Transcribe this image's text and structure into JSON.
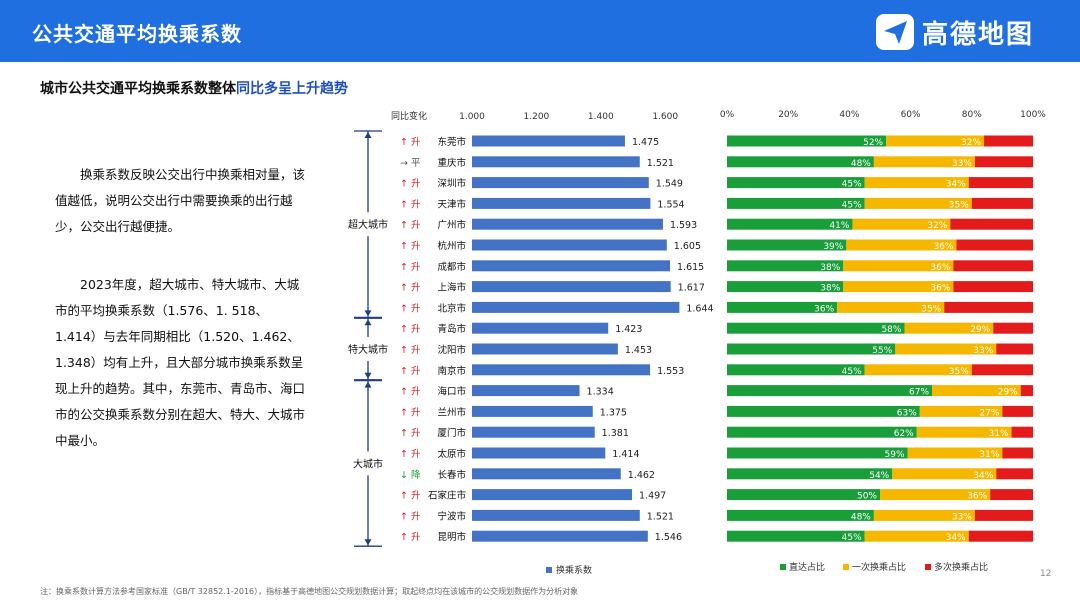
{
  "header": {
    "title": "公共交通平均换乘系数",
    "logo_text": "高德地图"
  },
  "subtitle": {
    "prefix": "城市公共交通平均换乘系数整体",
    "highlight": "同比多呈上升趋势"
  },
  "paragraphs": [
    "换乘系数反映公交出行中换乘相对量，该值越低，说明公交出行中需要换乘的出行越少，公交出行越便捷。",
    "2023年度，超大城市、特大城市、大城市的平均换乘系数（1.576、1. 518、1.414）与去年同期相比（1.520、1.462、1.348）均有上升，且大部分城市换乘系数呈现上升的趋势。其中，东莞市、青岛市、海口市的公交换乘系数分别在超大、特大、大城市中最小。"
  ],
  "change_header": "同比变化",
  "groups": [
    {
      "label": "超大城市",
      "start": 0,
      "end": 8
    },
    {
      "label": "特大城市",
      "start": 9,
      "end": 11
    },
    {
      "label": "大城市",
      "start": 12,
      "end": 19
    }
  ],
  "colors": {
    "bar": "#4472c4",
    "direct": "#1a9e3a",
    "one_transfer": "#f5b700",
    "multi_transfer": "#e31b1b",
    "up": "#d42020",
    "down": "#1a9e3a",
    "flat": "#555555"
  },
  "chart_data": [
    {
      "type": "bar",
      "orientation": "horizontal",
      "categories": [
        "东莞市",
        "重庆市",
        "深圳市",
        "天津市",
        "广州市",
        "杭州市",
        "成都市",
        "上海市",
        "北京市",
        "青岛市",
        "沈阳市",
        "南京市",
        "海口市",
        "兰州市",
        "厦门市",
        "太原市",
        "长春市",
        "石家庄市",
        "宁波市",
        "昆明市"
      ],
      "values": [
        1.475,
        1.521,
        1.549,
        1.554,
        1.593,
        1.605,
        1.615,
        1.617,
        1.644,
        1.423,
        1.453,
        1.553,
        1.334,
        1.375,
        1.381,
        1.414,
        1.462,
        1.497,
        1.521,
        1.546
      ],
      "value_labels": [
        "1.475",
        "1.521",
        "1.549",
        "1.554",
        "1.593",
        "1.605",
        "1.615",
        "1.617",
        "1.644",
        "1.423",
        "1.453",
        "1.553",
        "1.334",
        "1.375",
        "1.381",
        "1.414",
        "1.462",
        "1.497",
        "1.521",
        "1.546"
      ],
      "changes": [
        "↑ 升",
        "→ 平",
        "↑ 升",
        "↑ 升",
        "↑ 升",
        "↑ 升",
        "↑ 升",
        "↑ 升",
        "↑ 升",
        "↑ 升",
        "↑ 升",
        "↑ 升",
        "↑ 升",
        "↑ 升",
        "↑ 升",
        "↑ 升",
        "↓ 降",
        "↑ 升",
        "↑ 升",
        "↑ 升"
      ],
      "xlim": [
        1.0,
        1.6
      ],
      "ticks": [
        "1.000",
        "1.200",
        "1.400",
        "1.600"
      ],
      "legend": "换乘系数"
    },
    {
      "type": "bar",
      "orientation": "horizontal",
      "stacked": "percent",
      "categories": [
        "东莞市",
        "重庆市",
        "深圳市",
        "天津市",
        "广州市",
        "杭州市",
        "成都市",
        "上海市",
        "北京市",
        "青岛市",
        "沈阳市",
        "南京市",
        "海口市",
        "兰州市",
        "厦门市",
        "太原市",
        "长春市",
        "石家庄市",
        "宁波市",
        "昆明市"
      ],
      "series": [
        {
          "name": "直达占比",
          "values": [
            52,
            48,
            45,
            45,
            41,
            39,
            38,
            38,
            36,
            58,
            55,
            45,
            67,
            63,
            62,
            59,
            54,
            50,
            48,
            45
          ]
        },
        {
          "name": "一次换乘占比",
          "values": [
            32,
            33,
            34,
            35,
            32,
            36,
            36,
            36,
            35,
            29,
            33,
            35,
            29,
            27,
            31,
            31,
            34,
            36,
            33,
            34
          ]
        },
        {
          "name": "多次换乘占比",
          "values": [
            16,
            19,
            21,
            20,
            27,
            25,
            26,
            26,
            29,
            13,
            12,
            20,
            4,
            10,
            7,
            10,
            12,
            14,
            19,
            21
          ]
        }
      ],
      "series_labels": [
        [
          "52%",
          "48%",
          "45%",
          "45%",
          "41%",
          "39%",
          "38%",
          "38%",
          "36%",
          "58%",
          "55%",
          "45%",
          "67%",
          "63%",
          "62%",
          "59%",
          "54%",
          "50%",
          "48%",
          "45%"
        ],
        [
          "32%",
          "33%",
          "34%",
          "35%",
          "32%",
          "36%",
          "36%",
          "36%",
          "35%",
          "29%",
          "33%",
          "35%",
          "29%",
          "27%",
          "31%",
          "31%",
          "34%",
          "36%",
          "33%",
          "34%"
        ]
      ],
      "ticks": [
        "0%",
        "20%",
        "40%",
        "60%",
        "80%",
        "100%"
      ],
      "xlim": [
        0,
        100
      ]
    }
  ],
  "footnote": "注：换乘系数计算方法参考国家标准（GB/T 32852.1-2016），指标基于高德地图公交规划数据计算；取起终点均在该城市的公交规划数据作为分析对象",
  "page_number": "12"
}
